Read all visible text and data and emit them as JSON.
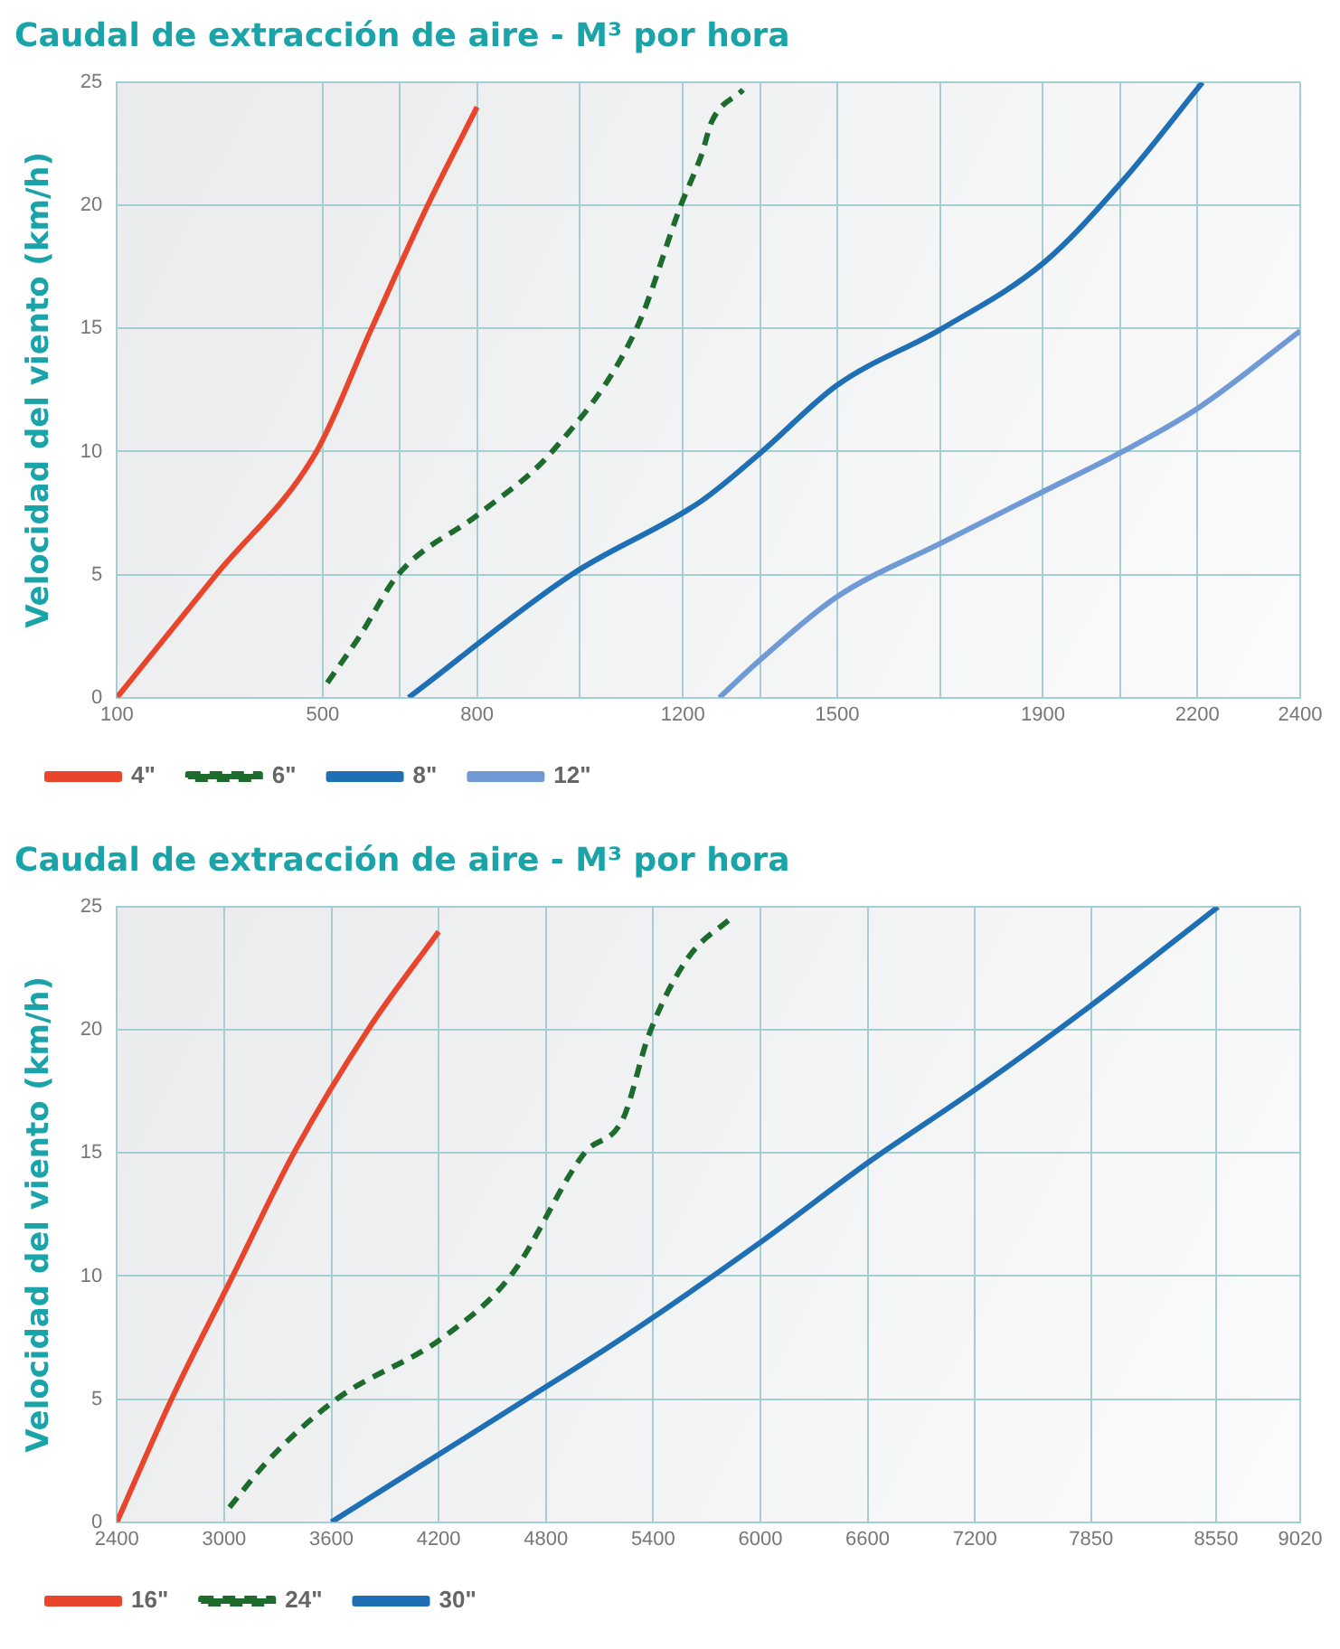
{
  "chart_data": [
    {
      "type": "line",
      "title": "Caudal de extracción de aire - M³ por hora",
      "ylabel": "Velocidad del viento (km/h)",
      "xlim": [
        100,
        2400
      ],
      "xticks": [
        100,
        500,
        {
          "value": 650,
          "label": null
        },
        800,
        {
          "value": 1000,
          "label": null
        },
        1200,
        {
          "value": 1350,
          "label": null
        },
        1500,
        {
          "value": 1700,
          "label": null
        },
        1900,
        {
          "value": 2050,
          "label": null
        },
        2200,
        2400
      ],
      "ylim": [
        0,
        25
      ],
      "yticks": [
        0,
        5,
        10,
        15,
        20,
        25
      ],
      "grid": true,
      "legend": "bottom left",
      "marker": "none",
      "series": [
        {
          "name": "4\"",
          "color": "#e8452c",
          "line_style": "solid",
          "x": [
            100,
            293,
            488,
            595,
            704,
            800
          ],
          "values": [
            0,
            5,
            10,
            15,
            20,
            24
          ]
        },
        {
          "name": "6\"",
          "color": "#1e6b2e",
          "line_style": "dashed",
          "x": [
            509,
            572,
            647,
            806,
            946,
            1110,
            1196,
            1237,
            1256,
            1317
          ],
          "values": [
            0.6,
            2.5,
            5,
            7.5,
            10,
            15,
            20,
            22.1,
            23.4,
            24.7
          ]
        },
        {
          "name": "8\"",
          "color": "#1f6fb5",
          "line_style": "solid",
          "x": [
            667,
            984,
            1237,
            1354,
            1500,
            1704,
            1903,
            2055,
            2210
          ],
          "values": [
            0,
            5,
            8,
            10,
            12.7,
            15,
            17.7,
            21,
            25
          ]
        },
        {
          "name": "12\"",
          "color": "#6f9ad6",
          "line_style": "solid",
          "x": [
            1271,
            1354,
            1500,
            1704,
            1903,
            2055,
            2204,
            2400
          ],
          "values": [
            0,
            1.6,
            4.1,
            6.3,
            8.4,
            10,
            11.8,
            14.9
          ]
        }
      ]
    },
    {
      "type": "line",
      "title": "Caudal de extracción de aire - M³ por hora",
      "ylabel": "Velocidad del viento (km/h)",
      "xlim": [
        2400,
        9020
      ],
      "xticks": [
        2400,
        3000,
        3600,
        4200,
        4800,
        5400,
        6000,
        6600,
        7200,
        7850,
        8550,
        9020
      ],
      "ylim": [
        0,
        25
      ],
      "yticks": [
        0,
        5,
        10,
        15,
        20,
        25
      ],
      "grid": true,
      "legend": "bottom left",
      "marker": "none",
      "series": [
        {
          "name": "16\"",
          "color": "#e8452c",
          "line_style": "solid",
          "x": [
            2400,
            2706,
            3048,
            3390,
            3804,
            4200
          ],
          "values": [
            0,
            5,
            10,
            15,
            20,
            24
          ]
        },
        {
          "name": "24\"",
          "color": "#1e6b2e",
          "line_style": "dashed",
          "x": [
            3030,
            3246,
            3630,
            4224,
            4602,
            5016,
            5232,
            5376,
            5592,
            5844
          ],
          "values": [
            0.6,
            2.5,
            5,
            7.5,
            10,
            15,
            16.4,
            19.8,
            22.9,
            24.6
          ]
        },
        {
          "name": "30\"",
          "color": "#1f6fb5",
          "line_style": "solid",
          "x": [
            3600,
            4692,
            5232,
            6006,
            6600,
            7206,
            7850,
            8560
          ],
          "values": [
            0,
            5,
            7.5,
            11.4,
            14.6,
            17.6,
            21,
            25
          ]
        }
      ]
    }
  ]
}
